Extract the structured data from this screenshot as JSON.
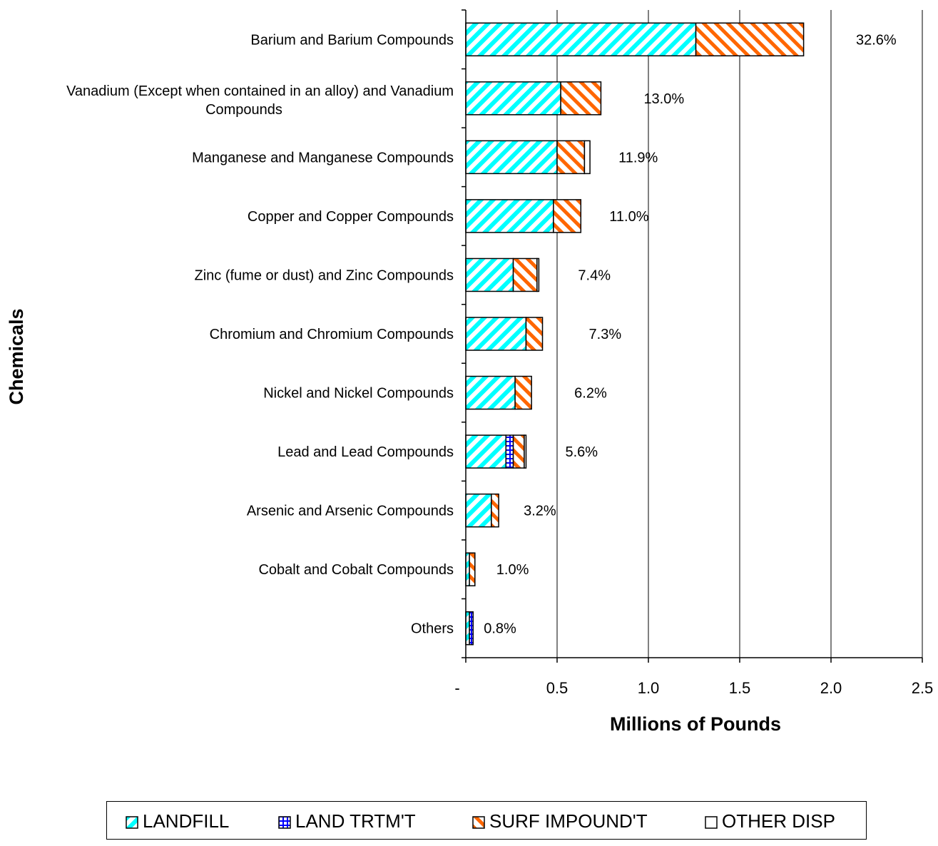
{
  "chart_data": {
    "type": "bar",
    "orientation": "horizontal",
    "stacked": true,
    "categories": [
      "Barium and Barium Compounds",
      "Vanadium (Except when contained in an alloy) and Vanadium Compounds",
      "Manganese and Manganese Compounds",
      "Copper and Copper Compounds",
      "Zinc (fume or dust) and Zinc Compounds",
      "Chromium and Chromium Compounds",
      "Nickel and Nickel Compounds",
      "Lead and Lead Compounds",
      "Arsenic and Arsenic Compounds",
      "Cobalt and Cobalt Compounds",
      "Others"
    ],
    "series": [
      {
        "name": "LANDFILL",
        "color": "#00FFFF",
        "values": [
          1.26,
          0.52,
          0.5,
          0.48,
          0.26,
          0.33,
          0.27,
          0.22,
          0.14,
          0.02,
          0.02
        ]
      },
      {
        "name": "LAND TRTM'T",
        "color": "#0000FF",
        "values": [
          0,
          0,
          0,
          0,
          0,
          0,
          0,
          0.04,
          0,
          0,
          0.02
        ]
      },
      {
        "name": "SURF IMPOUND'T",
        "color": "#FF6600",
        "values": [
          0.59,
          0.22,
          0.15,
          0.15,
          0.13,
          0.09,
          0.09,
          0.06,
          0.04,
          0.03,
          0
        ]
      },
      {
        "name": "OTHER DISP",
        "color": "#FFFFFF",
        "values": [
          0,
          0,
          0.03,
          0,
          0.01,
          0,
          0,
          0.01,
          0,
          0,
          0
        ]
      }
    ],
    "percent_labels": [
      "32.6%",
      "13.0%",
      "11.9%",
      "11.0%",
      "7.4%",
      "7.3%",
      "6.2%",
      "5.6%",
      "3.2%",
      "1.0%",
      "0.8%"
    ],
    "xlabel": "Millions of Pounds",
    "ylabel": "Chemicals",
    "xlim": [
      0,
      2.5
    ],
    "xticks": [
      "-",
      "0.5",
      "1.0",
      "1.5",
      "2.0",
      "2.5"
    ],
    "grid": "vertical",
    "legend_position": "bottom"
  }
}
